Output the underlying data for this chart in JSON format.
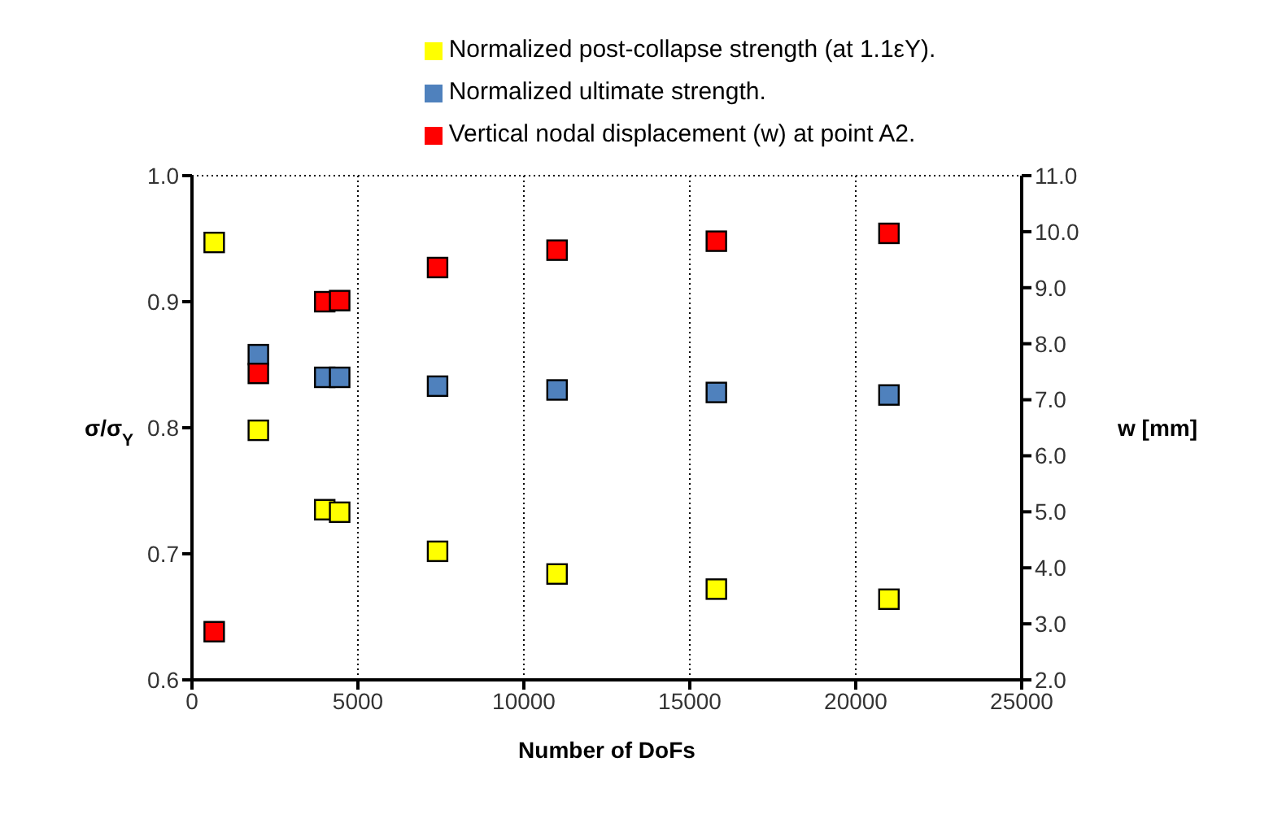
{
  "chart_data": {
    "type": "scatter",
    "xlabel": "Number of DoFs",
    "ylabel": "σ/σ$_{Y}$",
    "y2label": "w [mm]",
    "xlim": [
      0,
      25000
    ],
    "xticks": [
      0,
      5000,
      10000,
      15000,
      20000,
      25000
    ],
    "ylim": [
      0.6,
      1.0
    ],
    "yticks": [
      {
        "value": 0.6,
        "label": "0.6"
      },
      {
        "value": 0.7,
        "label": "0.7"
      },
      {
        "value": 0.8,
        "label": "0.8"
      },
      {
        "value": 0.9,
        "label": "0.9"
      },
      {
        "value": 1.0,
        "label": "1.0"
      }
    ],
    "y2lim": [
      2,
      11
    ],
    "y2ticks": [
      {
        "value": 2,
        "label": "2.0"
      },
      {
        "value": 3,
        "label": "3.0"
      },
      {
        "value": 4,
        "label": "4.0"
      },
      {
        "value": 5,
        "label": "5.0"
      },
      {
        "value": 6,
        "label": "6.0"
      },
      {
        "value": 7,
        "label": "7.0"
      },
      {
        "value": 8,
        "label": "8.0"
      },
      {
        "value": 9,
        "label": "9.0"
      },
      {
        "value": 10,
        "label": "10.0"
      },
      {
        "value": 11,
        "label": "11.0"
      }
    ],
    "grid": true,
    "legend": "top",
    "marker": "square",
    "series": [
      {
        "name": "Normalized ultimate strength.",
        "color": "#4f81bd",
        "x": [
          2000,
          4000,
          4450,
          7400,
          11000,
          15800,
          21000
        ],
        "values": [
          0.858,
          0.84,
          0.84,
          0.833,
          0.83,
          0.828,
          0.826
        ]
      },
      {
        "name": "Normalized post-collapse strength (at 1.1εY).",
        "color": "#ffff00",
        "x": [
          670,
          2000,
          4000,
          4450,
          7400,
          11000,
          15800,
          21000
        ],
        "values": [
          0.947,
          0.798,
          0.735,
          0.733,
          0.702,
          0.684,
          0.672,
          0.664
        ]
      },
      {
        "name": "Vertical nodal displacement (w) at point  A2.",
        "color": "#ff0000",
        "axis": "y2",
        "x": [
          670,
          2000,
          4000,
          4450,
          7400,
          11000,
          15800,
          21000
        ],
        "values": [
          2.86,
          7.47,
          8.75,
          8.77,
          9.36,
          9.67,
          9.83,
          9.97
        ]
      }
    ]
  }
}
